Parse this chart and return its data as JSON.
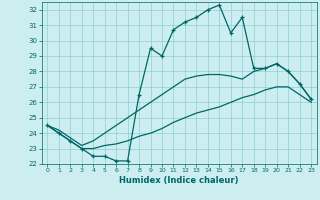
{
  "line1_x": [
    0,
    1,
    2,
    3,
    4,
    5,
    6,
    7,
    8,
    9,
    10,
    11,
    12,
    13,
    14,
    15,
    16,
    17,
    18,
    19,
    20,
    21,
    22,
    23
  ],
  "line1_y": [
    24.5,
    24.0,
    23.5,
    23.0,
    22.5,
    22.5,
    22.2,
    22.2,
    26.5,
    29.5,
    29.0,
    30.7,
    31.2,
    31.5,
    32.0,
    32.3,
    30.5,
    31.5,
    28.2,
    28.2,
    28.5,
    28.0,
    27.2,
    26.2
  ],
  "line2_x": [
    0,
    1,
    2,
    3,
    4,
    5,
    6,
    7,
    8,
    9,
    10,
    11,
    12,
    13,
    14,
    15,
    16,
    17,
    18,
    19,
    20,
    21,
    22,
    23
  ],
  "line2_y": [
    24.5,
    24.2,
    23.7,
    23.2,
    23.5,
    24.0,
    24.5,
    25.0,
    25.5,
    26.0,
    26.5,
    27.0,
    27.5,
    27.7,
    27.8,
    27.8,
    27.7,
    27.5,
    28.0,
    28.2,
    28.5,
    28.0,
    27.2,
    26.2
  ],
  "line3_x": [
    0,
    1,
    2,
    3,
    4,
    5,
    6,
    7,
    8,
    9,
    10,
    11,
    12,
    13,
    14,
    15,
    16,
    17,
    18,
    19,
    20,
    21,
    22,
    23
  ],
  "line3_y": [
    24.5,
    24.0,
    23.5,
    23.0,
    23.0,
    23.2,
    23.3,
    23.5,
    23.8,
    24.0,
    24.3,
    24.7,
    25.0,
    25.3,
    25.5,
    25.7,
    26.0,
    26.3,
    26.5,
    26.8,
    27.0,
    27.0,
    26.5,
    26.0
  ],
  "line_color": "#006666",
  "bg_color": "#cceef0",
  "grid_color": "#80c8cc",
  "xlabel": "Humidex (Indice chaleur)",
  "ylim": [
    22,
    32.5
  ],
  "xlim": [
    -0.5,
    23.5
  ],
  "yticks": [
    22,
    23,
    24,
    25,
    26,
    27,
    28,
    29,
    30,
    31,
    32
  ],
  "xticks": [
    0,
    1,
    2,
    3,
    4,
    5,
    6,
    7,
    8,
    9,
    10,
    11,
    12,
    13,
    14,
    15,
    16,
    17,
    18,
    19,
    20,
    21,
    22,
    23
  ]
}
